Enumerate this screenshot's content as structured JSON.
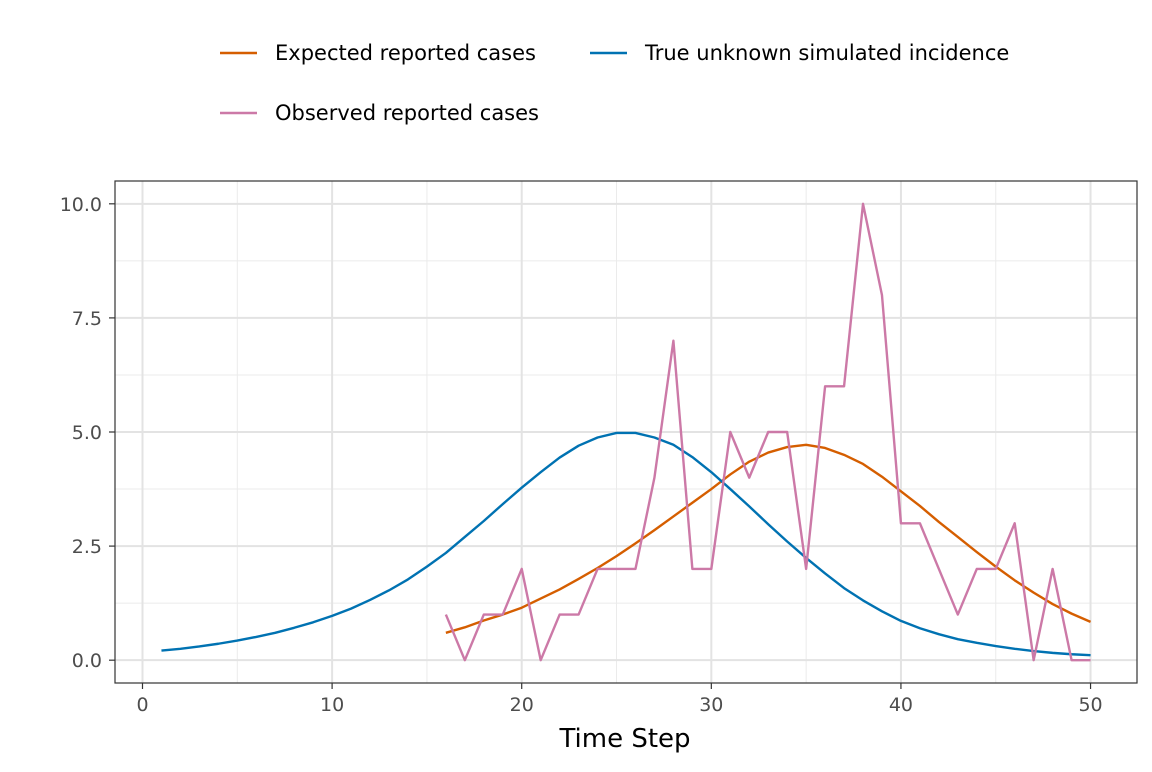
{
  "chart_data": {
    "type": "line",
    "xlabel": "Time Step",
    "ylabel": "",
    "xlim": [
      -1.45,
      52.45
    ],
    "ylim": [
      -0.5,
      10.5
    ],
    "xticks": [
      0,
      10,
      20,
      30,
      40,
      50
    ],
    "yticks": [
      0.0,
      2.5,
      5.0,
      7.5,
      10.0
    ],
    "xtick_labels": [
      "0",
      "10",
      "20",
      "30",
      "40",
      "50"
    ],
    "ytick_labels": [
      "0.0",
      "2.5",
      "5.0",
      "7.5",
      "10.0"
    ],
    "grid": true,
    "legend_position": "top",
    "series": [
      {
        "name": "Expected reported cases",
        "color": "#D55E00",
        "x": [
          16,
          17,
          18,
          19,
          20,
          21,
          22,
          23,
          24,
          25,
          26,
          27,
          28,
          29,
          30,
          31,
          32,
          33,
          34,
          35,
          36,
          37,
          38,
          39,
          40,
          41,
          42,
          43,
          44,
          45,
          46,
          47,
          48,
          49,
          50
        ],
        "y": [
          0.6,
          0.72,
          0.87,
          1.0,
          1.15,
          1.35,
          1.55,
          1.78,
          2.02,
          2.28,
          2.56,
          2.85,
          3.15,
          3.45,
          3.75,
          4.07,
          4.35,
          4.55,
          4.67,
          4.72,
          4.65,
          4.5,
          4.3,
          4.02,
          3.7,
          3.38,
          3.03,
          2.7,
          2.37,
          2.05,
          1.75,
          1.48,
          1.23,
          1.02,
          0.84
        ]
      },
      {
        "name": "True unknown simulated incidence",
        "color": "#0072B2",
        "x": [
          1,
          2,
          3,
          4,
          5,
          6,
          7,
          8,
          9,
          10,
          11,
          12,
          13,
          14,
          15,
          16,
          17,
          18,
          19,
          20,
          21,
          22,
          23,
          24,
          25,
          26,
          27,
          28,
          29,
          30,
          31,
          32,
          33,
          34,
          35,
          36,
          37,
          38,
          39,
          40,
          41,
          42,
          43,
          44,
          45,
          46,
          47,
          48,
          49,
          50
        ],
        "y": [
          0.21,
          0.25,
          0.3,
          0.36,
          0.43,
          0.51,
          0.6,
          0.71,
          0.83,
          0.97,
          1.13,
          1.32,
          1.53,
          1.77,
          2.05,
          2.35,
          2.7,
          3.05,
          3.42,
          3.78,
          4.12,
          4.44,
          4.7,
          4.88,
          4.98,
          4.98,
          4.88,
          4.72,
          4.45,
          4.12,
          3.75,
          3.37,
          2.98,
          2.6,
          2.24,
          1.9,
          1.58,
          1.31,
          1.07,
          0.86,
          0.7,
          0.57,
          0.46,
          0.38,
          0.31,
          0.25,
          0.2,
          0.16,
          0.13,
          0.11
        ]
      },
      {
        "name": "Observed reported cases",
        "color": "#CC79A7",
        "x": [
          16,
          17,
          18,
          19,
          20,
          21,
          22,
          23,
          24,
          25,
          26,
          27,
          28,
          29,
          30,
          31,
          32,
          33,
          34,
          35,
          36,
          37,
          38,
          39,
          40,
          41,
          42,
          43,
          44,
          45,
          46,
          47,
          48,
          49,
          50
        ],
        "y": [
          1,
          0,
          1,
          1,
          2,
          0,
          1,
          1,
          2,
          2,
          2,
          4,
          7,
          2,
          2,
          5,
          4,
          5,
          5,
          2,
          6,
          6,
          10,
          8,
          3,
          3,
          2,
          1,
          2,
          2,
          3,
          0,
          2,
          0,
          0
        ]
      }
    ]
  }
}
